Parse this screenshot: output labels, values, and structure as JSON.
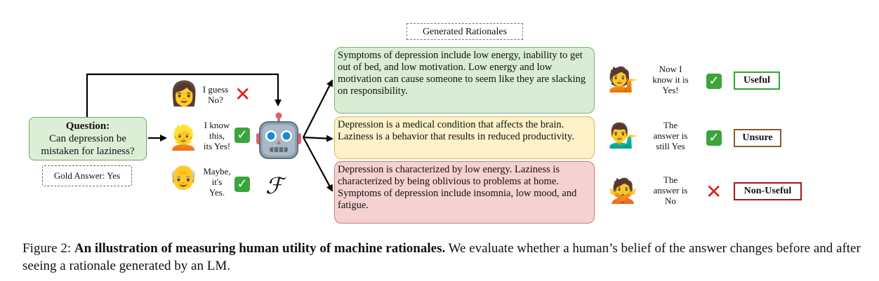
{
  "generated_label": "Generated Rationales",
  "question": {
    "heading": "Question:",
    "line1": "Can depression be",
    "line2": "mistaken for laziness?"
  },
  "gold_answer": "Gold Answer: Yes",
  "pre_responses": [
    {
      "lines": [
        "I guess",
        "No?"
      ],
      "mark": "cross"
    },
    {
      "lines": [
        "I know",
        "this,",
        "its Yes!"
      ],
      "mark": "check"
    },
    {
      "lines": [
        "Maybe,",
        "it's",
        "Yes."
      ],
      "mark": "check"
    }
  ],
  "model_symbol": "ℱ",
  "rationales": [
    "Symptoms of depression include low energy, inability to get out of bed, and low motivation. Low energy and low motivation can cause someone to seem like they are slacking on responsibility.",
    "Depression is a medical condition that affects the brain. Laziness is a behavior that results in reduced productivity.",
    "Depression is characterized by low energy. Laziness is characterized by being oblivious to problems at home. Symptoms of depression include insomnia, low mood, and fatigue."
  ],
  "post_responses": [
    {
      "lines": [
        "Now I",
        "know it is",
        "Yes!"
      ],
      "mark": "check",
      "badge": "Useful",
      "color": "#2ea82e"
    },
    {
      "lines": [
        "The",
        "answer is",
        "still Yes"
      ],
      "mark": "check",
      "badge": "Unsure",
      "color": "#8b5a2b"
    },
    {
      "lines": [
        "The",
        "answer is",
        "No"
      ],
      "mark": "cross",
      "badge": "Non-Useful",
      "color": "#a01818"
    }
  ],
  "caption": {
    "prefix": "Figure 2: ",
    "bold": "An illustration of measuring human utility of machine rationales.",
    "rest": " We evaluate whether a human’s belief of the answer changes before and after seeing a rationale generated by an LM."
  },
  "icons": {
    "person": "person-emoji",
    "check": "check-mark-button",
    "cross": "cross-mark",
    "robot": "robot-face"
  },
  "colors": {
    "useful": "#2ea82e",
    "unsure": "#8b5a2b",
    "non_useful": "#a01818",
    "green_box": "#d9ecd4",
    "yellow_box": "#fdf1c8",
    "red_box": "#f6d1d1"
  }
}
